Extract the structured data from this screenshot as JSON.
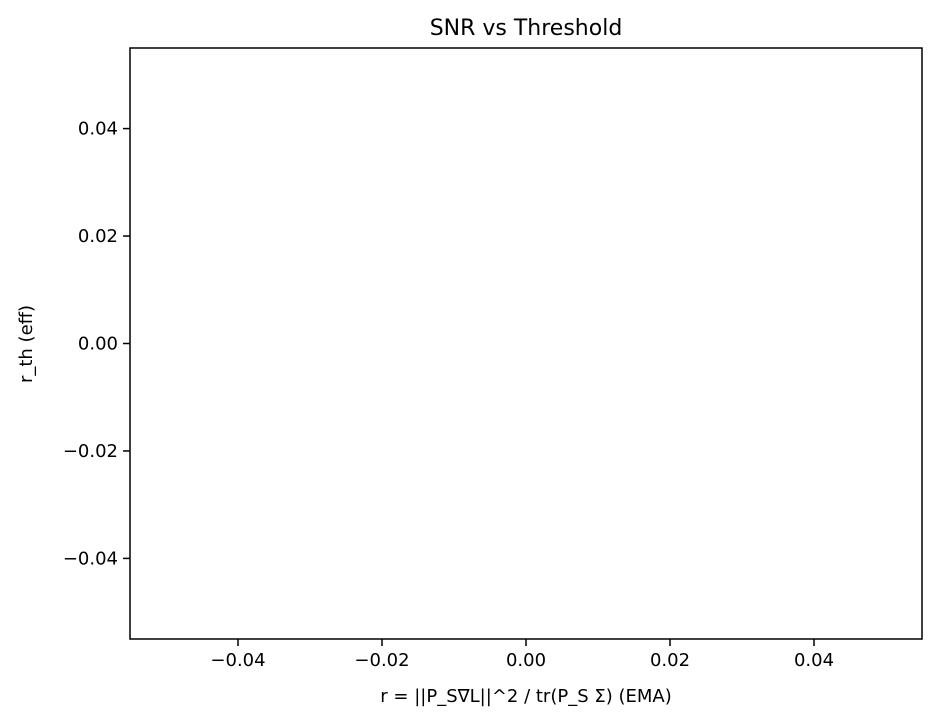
{
  "chart_data": {
    "type": "scatter",
    "title": "SNR vs Threshold",
    "xlabel": "r = ||P_S∇L||^2 / tr(P_S Σ) (EMA)",
    "ylabel": "r_th (eff)",
    "xlim": [
      -0.055,
      0.055
    ],
    "ylim": [
      -0.055,
      0.055
    ],
    "x_ticks": [
      -0.04,
      -0.02,
      0.0,
      0.02,
      0.04
    ],
    "y_ticks": [
      -0.04,
      -0.02,
      0.0,
      0.02,
      0.04
    ],
    "x_tick_labels": [
      "−0.04",
      "−0.02",
      "0.00",
      "0.02",
      "0.04"
    ],
    "y_tick_labels": [
      "−0.04",
      "−0.02",
      "0.00",
      "0.02",
      "0.04"
    ],
    "grid": false,
    "series": [],
    "colors": {
      "axes": "#000000",
      "background": "#ffffff"
    }
  }
}
